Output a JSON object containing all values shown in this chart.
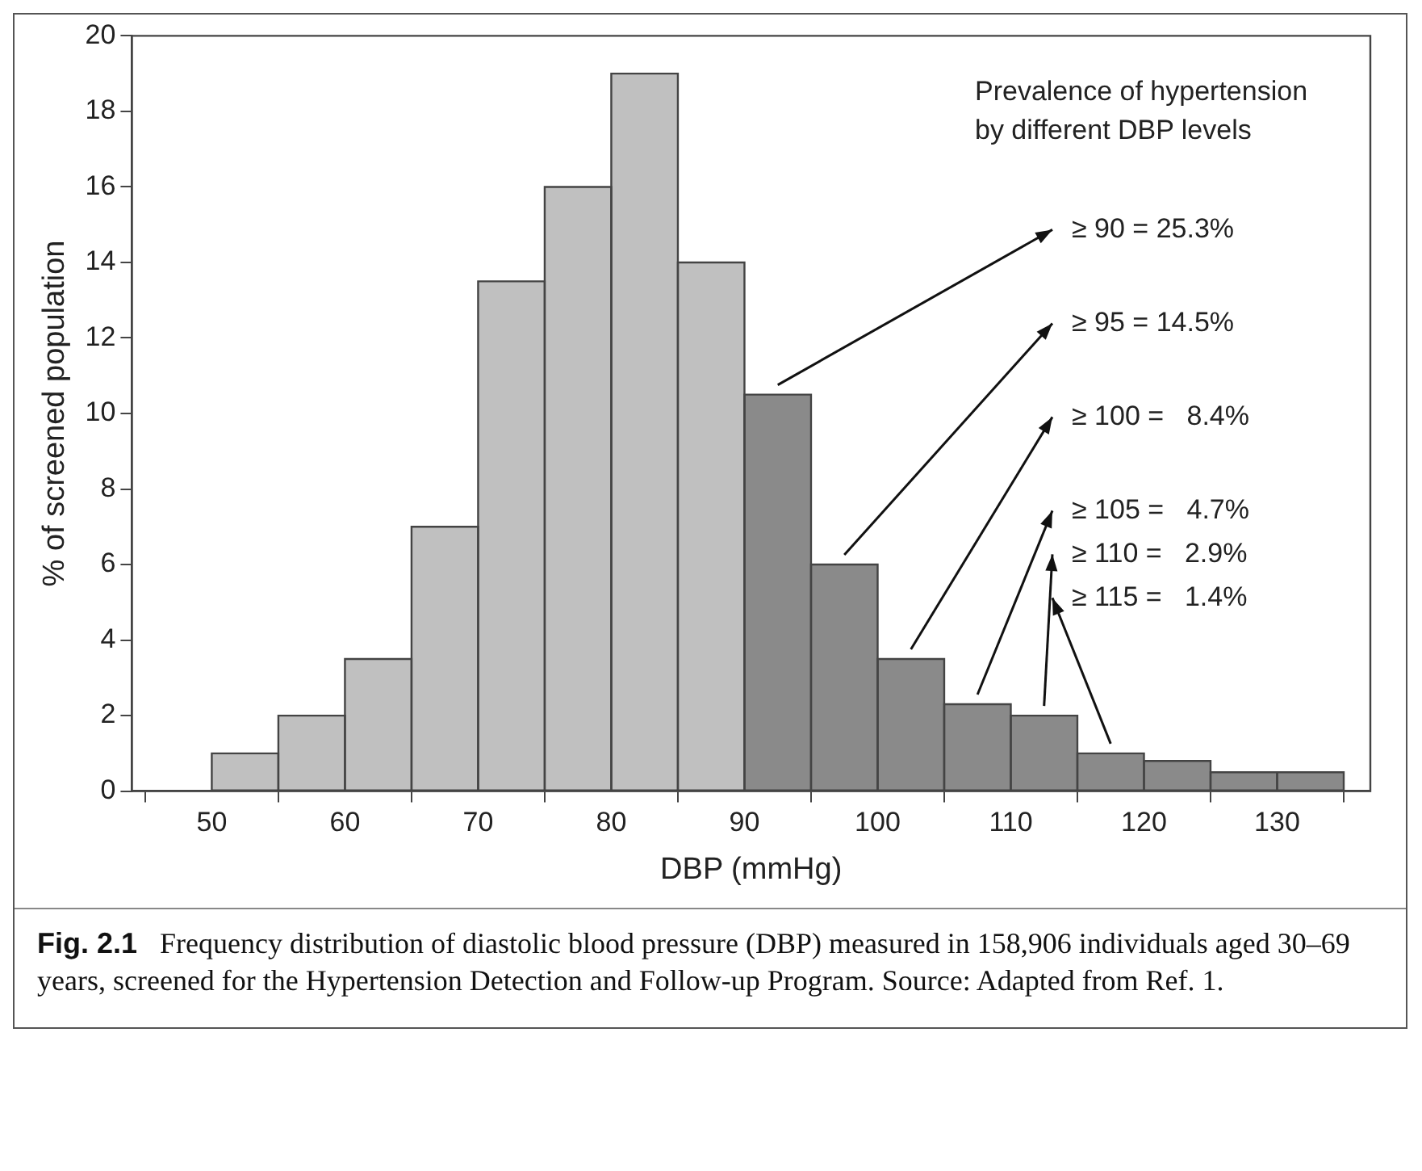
{
  "chart_data": {
    "type": "histogram",
    "xlabel": "DBP (mmHg)",
    "ylabel": "% of screened population",
    "bins": [
      50,
      55,
      60,
      65,
      70,
      75,
      80,
      85,
      90,
      95,
      100,
      105,
      110,
      115,
      120,
      125,
      130,
      135
    ],
    "values": [
      1,
      2,
      3.5,
      7,
      13.5,
      16,
      19,
      14,
      10.5,
      6,
      3.5,
      2.3,
      2,
      1,
      0.8,
      0.5,
      0.5
    ],
    "colors": [
      "#c0c0c0",
      "#c0c0c0",
      "#c0c0c0",
      "#c0c0c0",
      "#c0c0c0",
      "#c0c0c0",
      "#c0c0c0",
      "#c0c0c0",
      "#8a8a8a",
      "#8a8a8a",
      "#8a8a8a",
      "#8a8a8a",
      "#8a8a8a",
      "#8a8a8a",
      "#8a8a8a",
      "#8a8a8a",
      "#8a8a8a"
    ],
    "xlim": [
      44,
      137
    ],
    "xticks": [
      50,
      60,
      70,
      80,
      90,
      100,
      110,
      120,
      130
    ],
    "ylim": [
      0,
      20
    ],
    "yticks": [
      0,
      2,
      4,
      6,
      8,
      10,
      12,
      14,
      16,
      18,
      20
    ],
    "grid": false,
    "legend": false,
    "annotations": [
      "Prevalence of hypertension\nby different DBP levels",
      {
        "text": "≥ 90 = 25.3%",
        "x": 92.5,
        "y": 10.5
      },
      {
        "text": "≥ 95 = 14.5%",
        "x": 97.5,
        "y": 6
      },
      {
        "text": "≥ 100 =   8.4%",
        "x": 102.5,
        "y": 3.5
      },
      {
        "text": "≥ 105 =   4.7%",
        "x": 107.5,
        "y": 2.3
      },
      {
        "text": "≥ 110 =   2.9%",
        "x": 112.5,
        "y": 2
      },
      {
        "text": "≥ 115 =   1.4%",
        "x": 117.5,
        "y": 1
      },
      "Fig. 2.1",
      "Frequency distribution of diastolic blood pressure (DBP) measured in 158,906 individuals aged 30–69 years, screened for the Hypertension Detection and Follow-up Program. Source: Adapted from Ref. 1."
    ]
  }
}
